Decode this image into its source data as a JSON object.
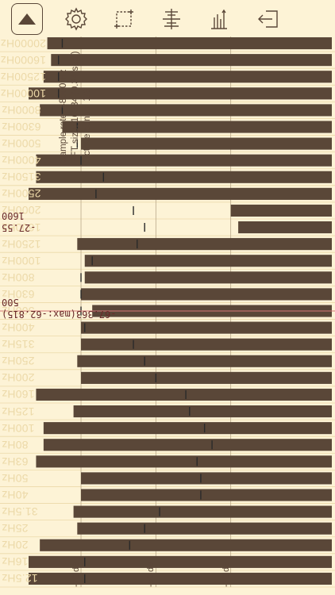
{
  "toolbar": {
    "buttons": [
      {
        "name": "play-toggle-button",
        "icon": "triangle-up-icon",
        "active": true
      },
      {
        "name": "settings-button",
        "icon": "gear-icon",
        "active": false
      },
      {
        "name": "selection-button",
        "icon": "crop-select-icon",
        "active": false
      },
      {
        "name": "align-button",
        "icon": "center-lines-icon",
        "active": false
      },
      {
        "name": "bars-mode-button",
        "icon": "bar-levels-icon",
        "active": false
      },
      {
        "name": "export-button",
        "icon": "export-arrow-icon",
        "active": false
      }
    ]
  },
  "info": {
    "sample_rate": "Sample rate: 48000 Hz",
    "fft_size": "FFT size: 16384 (0.34 sec.)",
    "octave_bands": "Octave bands: 1/3"
  },
  "readouts": {
    "upper_freq": "1600",
    "upper_value": "-27.55",
    "lower_freq": "500",
    "lower_value": "-67.363(max:-62.815)"
  },
  "colors": {
    "background": "#fdf3d6",
    "bar": "#5a4738",
    "grid": "#ecd9a8",
    "cursor": "#d77777"
  },
  "chart_data": {
    "type": "bar",
    "orientation": "horizontal",
    "x_axis_ticks": [
      "-30 dB",
      "-50 dB",
      "-70 dB"
    ],
    "x_range_db": [
      -91,
      -3
    ],
    "categories": [
      "12.5Hz",
      "16Hz",
      "20Hz",
      "25Hz",
      "31.5Hz",
      "40Hz",
      "50Hz",
      "63Hz",
      "80Hz",
      "100Hz",
      "125Hz",
      "160Hz",
      "200Hz",
      "250Hz",
      "315Hz",
      "400Hz",
      "500Hz",
      "630Hz",
      "800Hz",
      "1000Hz",
      "1250Hz",
      "1600Hz",
      "2000Hz",
      "2500Hz",
      "3150Hz",
      "4000Hz",
      "5000Hz",
      "6300Hz",
      "8000Hz",
      "10000Hz",
      "12500Hz",
      "16000Hz",
      "20000Hz"
    ],
    "series": [
      {
        "values": [
          -84,
          -84,
          -81,
          -71,
          -72,
          -70,
          -70,
          -82,
          -80,
          -80,
          -72,
          -82,
          -70,
          -71,
          -70,
          -70,
          -67,
          -70,
          -69,
          -69,
          -71,
          -28,
          -30,
          -84,
          -82,
          -82,
          -70,
          -75,
          -81,
          -84,
          -80,
          -78,
          -79
        ]
      },
      {
        "values": [
          -69,
          -69,
          -57,
          -53,
          -49,
          -38,
          -38,
          -39,
          -35,
          -37,
          -41,
          -42,
          -50,
          -53,
          -56,
          -69,
          -70,
          -70,
          -70,
          -67,
          -55,
          -53,
          -56,
          -66,
          -64,
          -70,
          -71,
          -71,
          -75,
          -76,
          -76,
          -76,
          -75
        ]
      }
    ]
  }
}
